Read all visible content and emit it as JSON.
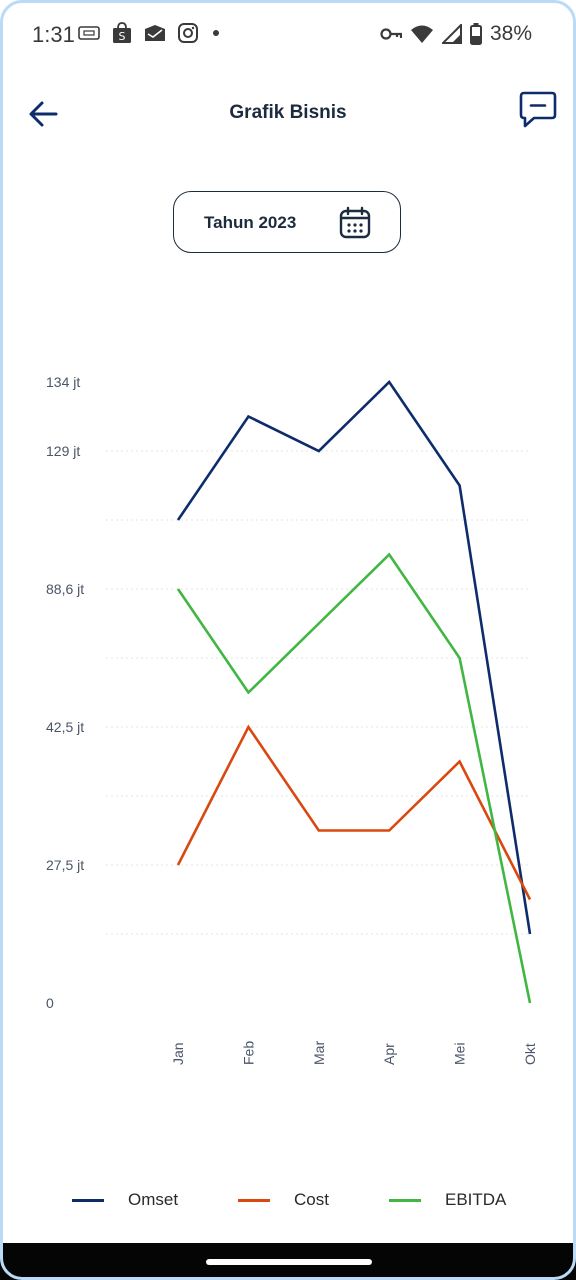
{
  "status_bar": {
    "time": "1:31",
    "battery": "38%",
    "left_icons": [
      "sim-card-icon",
      "shopping-bag-icon",
      "mail-icon",
      "instagram-icon",
      "dot-icon"
    ],
    "right_icons": [
      "vpn-key-icon",
      "wifi-icon",
      "signal-icon",
      "battery-icon"
    ]
  },
  "header": {
    "title": "Grafik Bisnis",
    "back_icon": "arrow-left-icon",
    "chat_icon": "chat-icon"
  },
  "year_selector": {
    "label": "Tahun 2023",
    "icon": "calendar-icon"
  },
  "chart_data": {
    "type": "line",
    "categories": [
      "Jan",
      "Feb",
      "Mar",
      "Apr",
      "Mei",
      "Okt"
    ],
    "y_tick_labels": [
      "134 jt",
      "129 jt",
      "88,6 jt",
      "42,5 jt",
      "27,5 jt",
      "0"
    ],
    "y_tick_slots": [
      9,
      8,
      6,
      4,
      2,
      0
    ],
    "ylim_slots": [
      0,
      9
    ],
    "grid": true,
    "legend_position": "bottom",
    "series": [
      {
        "name": "Omset",
        "color": "#0e2c6b",
        "slot_values": [
          7,
          8.5,
          8,
          9,
          7.5,
          1
        ]
      },
      {
        "name": "Cost",
        "color": "#d9480f",
        "slot_values": [
          2,
          4,
          2.5,
          2.5,
          3.5,
          1.5
        ]
      },
      {
        "name": "EBITDA",
        "color": "#40b742",
        "slot_values": [
          6,
          4.5,
          5.5,
          6.5,
          5,
          0
        ]
      }
    ]
  },
  "nav": {
    "home_indicator": "home-indicator"
  }
}
